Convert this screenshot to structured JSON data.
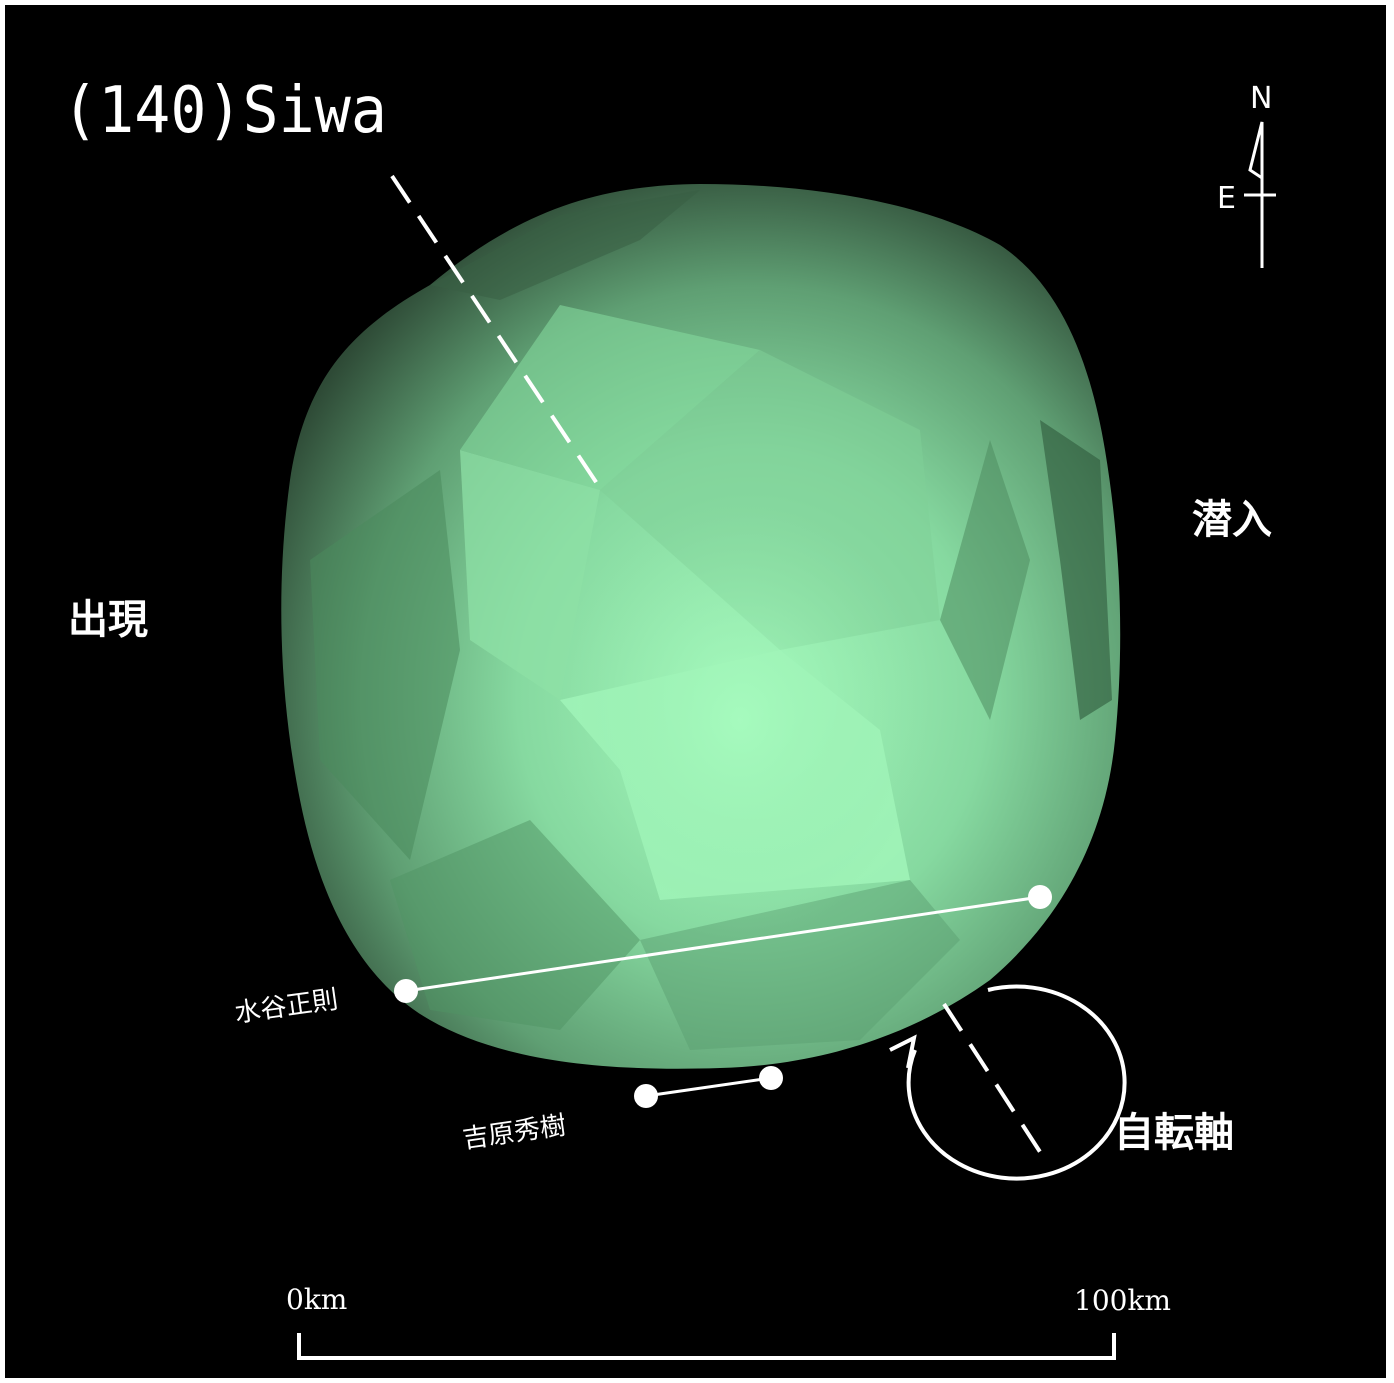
{
  "title": "(140)Siwa",
  "compass": {
    "north": "N",
    "east": "E"
  },
  "labels": {
    "reappearance": "出現",
    "disappearance": "潜入",
    "rotation_axis": "自転軸"
  },
  "observers": [
    {
      "name": "水谷正則"
    },
    {
      "name": "吉原秀樹"
    }
  ],
  "scale_bar": {
    "start_label": "0km",
    "end_label": "100km"
  },
  "colors": {
    "background": "#000000",
    "frame": "#ffffff",
    "asteroid_dark": "#2e4a36",
    "asteroid_mid": "#5f9f73",
    "asteroid_light": "#a4f8bc",
    "chord": "#ffffff"
  }
}
